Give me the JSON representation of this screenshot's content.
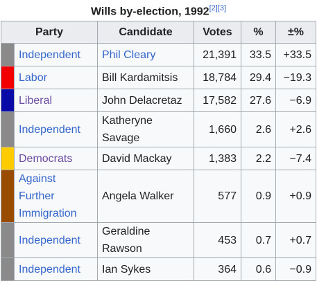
{
  "caption": {
    "title": "Wills by-election, 1992",
    "refs": [
      "[2]",
      "[3]"
    ]
  },
  "table": {
    "headers": [
      "Party",
      "Candidate",
      "Votes",
      "%",
      "±%"
    ],
    "rows": [
      {
        "swatch": "#8a8a8a",
        "party": "Independent",
        "party_color": "#3366cc",
        "candidate": "Phil Cleary",
        "candidate_color": "#3366cc",
        "votes": "21,391",
        "pct": "33.5",
        "change": "+33.5"
      },
      {
        "swatch": "#f20000",
        "party": "Labor",
        "party_color": "#3366cc",
        "candidate": "Bill Kardamitsis",
        "candidate_color": "#202122",
        "votes": "18,784",
        "pct": "29.4",
        "change": "−19.3"
      },
      {
        "swatch": "#0a0aa6",
        "party": "Liberal",
        "party_color": "#6b4ba1",
        "candidate": "John Delacretaz",
        "candidate_color": "#202122",
        "votes": "17,582",
        "pct": "27.6",
        "change": "−6.9"
      },
      {
        "swatch": "#8a8a8a",
        "party": "Independent",
        "party_color": "#3366cc",
        "candidate": "Katheryne Savage",
        "candidate_color": "#202122",
        "votes": "1,660",
        "pct": "2.6",
        "change": "+2.6"
      },
      {
        "swatch": "#ffcc00",
        "party": "Democrats",
        "party_color": "#6b4ba1",
        "candidate": "David Mackay",
        "candidate_color": "#202122",
        "votes": "1,383",
        "pct": "2.2",
        "change": "−7.4"
      },
      {
        "swatch": "#994c00",
        "party": "Against Further Immigration",
        "party_color": "#3366cc",
        "candidate": "Angela Walker",
        "candidate_color": "#202122",
        "votes": "577",
        "pct": "0.9",
        "change": "+0.9"
      },
      {
        "swatch": "#8a8a8a",
        "party": "Independent",
        "party_color": "#3366cc",
        "candidate": "Geraldine Rawson",
        "candidate_color": "#202122",
        "votes": "453",
        "pct": "0.7",
        "change": "+0.7"
      },
      {
        "swatch": "#8a8a8a",
        "party": "Independent",
        "party_color": "#3366cc",
        "candidate": "Ian Sykes",
        "candidate_color": "#202122",
        "votes": "364",
        "pct": "0.6",
        "change": "−0.9"
      }
    ]
  }
}
